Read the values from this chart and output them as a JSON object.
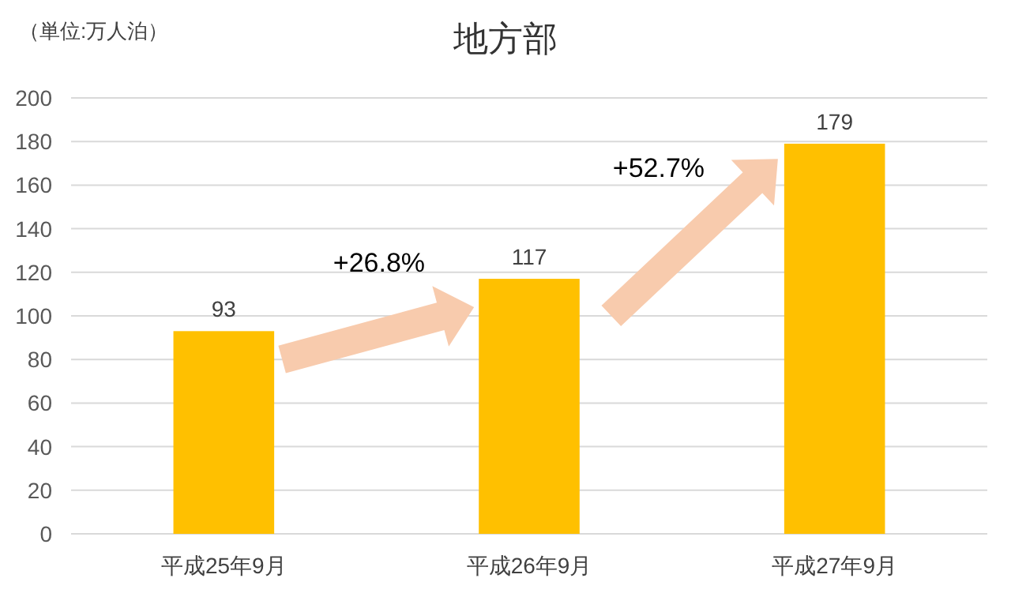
{
  "chart_data": {
    "type": "bar",
    "title": "地方部",
    "annotations": [
      "（単位:万人泊）",
      "+26.8%",
      "+52.7%"
    ],
    "categories": [
      "平成25年9月",
      "平成26年9月",
      "平成27年9月"
    ],
    "values": [
      93,
      117,
      179
    ],
    "color": "#ffc000",
    "ylim": [
      0,
      200
    ],
    "yticks": [
      0,
      20,
      40,
      60,
      80,
      100,
      120,
      140,
      160,
      180,
      200
    ],
    "grid": "y",
    "data_labels": true
  }
}
